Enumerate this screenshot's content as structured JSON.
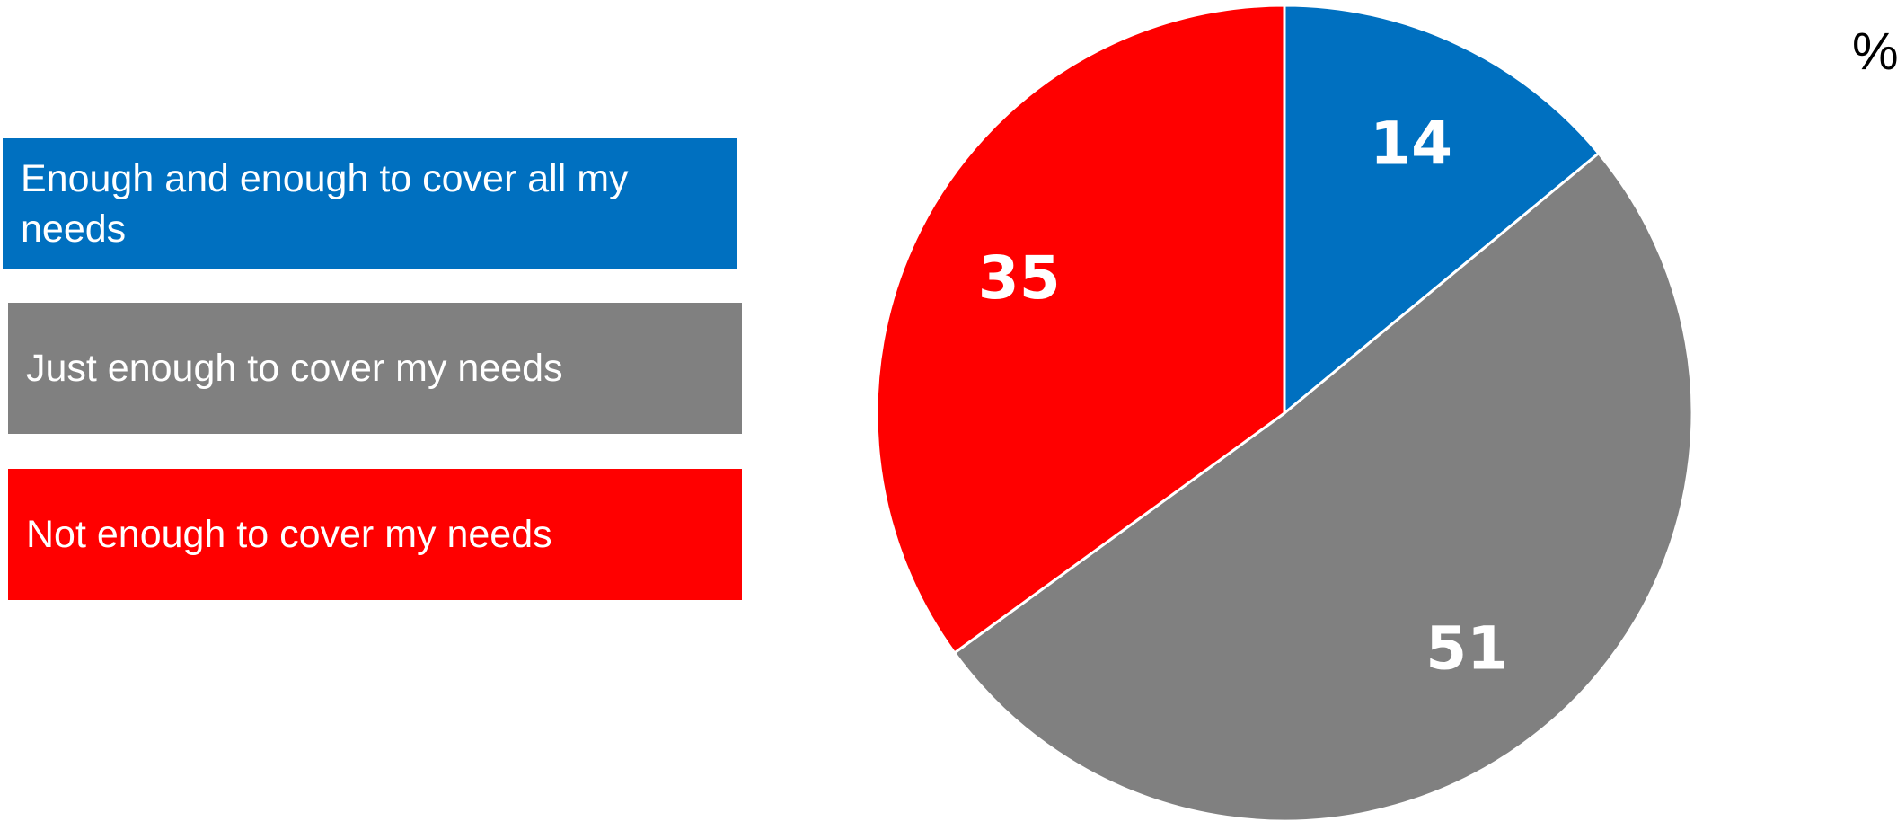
{
  "unit_label": "%",
  "chart_data": {
    "type": "pie",
    "start_angle_deg": 0,
    "direction": "clockwise",
    "legend_position": "left",
    "slices": [
      {
        "label": "Enough and enough to cover all my needs",
        "value": 14,
        "color": "#0070C0"
      },
      {
        "label": "Just enough to cover my needs",
        "value": 51,
        "color": "#808080"
      },
      {
        "label": "Not enough to cover my needs",
        "value": 35,
        "color": "#FF0000"
      }
    ]
  }
}
